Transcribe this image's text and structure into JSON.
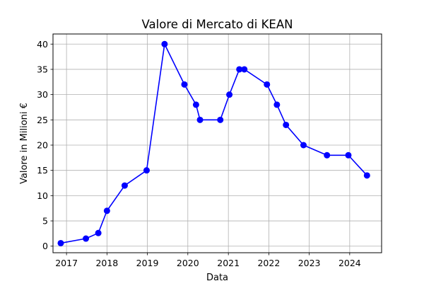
{
  "chart_data": {
    "type": "line",
    "title": "Valore di Mercato di KEAN",
    "xlabel": "Data",
    "ylabel": "Valore in Milioni €",
    "ylim": [
      -1.3,
      42.0
    ],
    "xlim": [
      "2016-09-01",
      "2024-10-15"
    ],
    "yticks": [
      0,
      5,
      10,
      15,
      20,
      25,
      30,
      35,
      40
    ],
    "xticks": [
      "2017-01-01",
      "2018-01-01",
      "2019-01-01",
      "2020-01-01",
      "2021-01-01",
      "2022-01-01",
      "2023-01-01",
      "2024-01-01"
    ],
    "xtick_labels": [
      "2017",
      "2018",
      "2019",
      "2020",
      "2021",
      "2022",
      "2023",
      "2024"
    ],
    "grid": true,
    "colors": {
      "line": "#0000ff",
      "grid": "#b0b0b0",
      "axes": "#000000"
    },
    "series": [
      {
        "color": "#0000ff",
        "marker": "circle",
        "points": [
          [
            "2016-11-10",
            0.6
          ],
          [
            "2017-06-25",
            1.5
          ],
          [
            "2017-10-15",
            2.6
          ],
          [
            "2018-01-01",
            7.0
          ],
          [
            "2018-06-10",
            12.0
          ],
          [
            "2018-12-25",
            15.0
          ],
          [
            "2019-06-05",
            40.0
          ],
          [
            "2019-12-01",
            32.0
          ],
          [
            "2020-03-15",
            28.0
          ],
          [
            "2020-04-20",
            25.0
          ],
          [
            "2020-10-20",
            25.0
          ],
          [
            "2021-01-10",
            30.0
          ],
          [
            "2021-04-10",
            35.0
          ],
          [
            "2021-05-25",
            35.0
          ],
          [
            "2021-12-15",
            32.0
          ],
          [
            "2022-03-15",
            28.0
          ],
          [
            "2022-06-05",
            24.0
          ],
          [
            "2022-11-10",
            20.0
          ],
          [
            "2023-06-10",
            18.0
          ],
          [
            "2023-12-20",
            18.0
          ],
          [
            "2024-06-05",
            14.0
          ]
        ]
      }
    ]
  }
}
